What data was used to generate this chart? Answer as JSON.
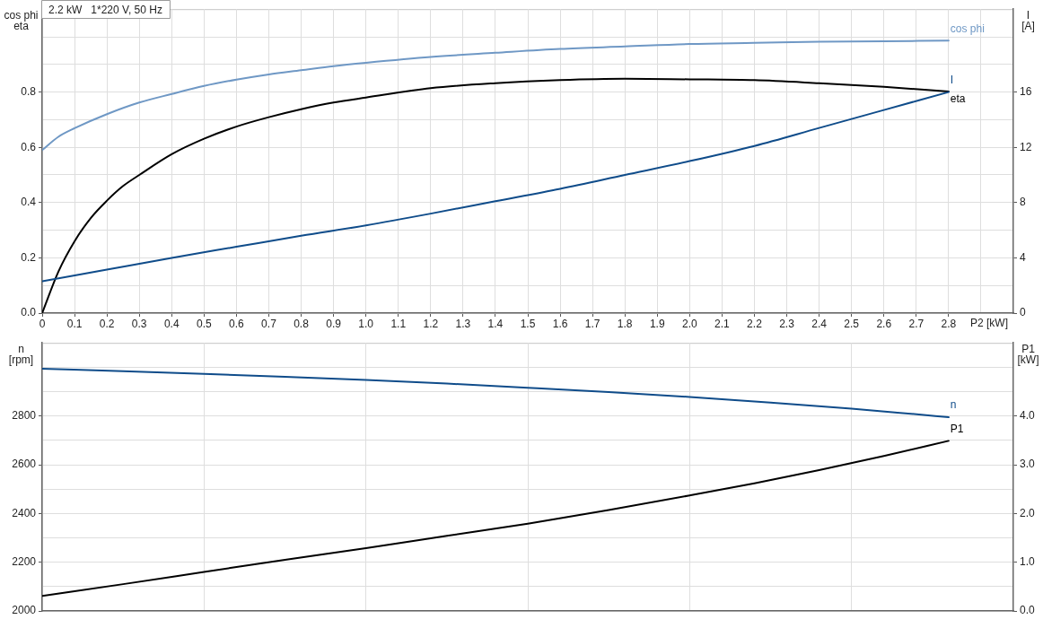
{
  "chart_data": [
    {
      "type": "line",
      "title": "2.2 kW   1*220 V, 50 Hz",
      "xlabel": "P2 [kW]",
      "ylabel": "cos phi\neta",
      "y2label": "I\n[A]",
      "xlim": [
        0,
        3.0
      ],
      "xticks": [
        0,
        0.1,
        0.2,
        0.3,
        0.4,
        0.5,
        0.6,
        0.7,
        0.8,
        0.9,
        {
          "value": 1,
          "label": "1.0"
        },
        1.1,
        1.2,
        1.3,
        1.4,
        1.5,
        1.6,
        1.7,
        1.8,
        1.9,
        {
          "value": 2,
          "label": "2.0"
        },
        2.1,
        2.2,
        2.3,
        2.4,
        2.5,
        2.6,
        2.7,
        2.8,
        {
          "value": 2.9,
          "label": null
        }
      ],
      "ylim": [
        0,
        1.1
      ],
      "yticks": [
        {
          "value": 0,
          "label": "0.0"
        },
        {
          "value": 0.1,
          "label": null
        },
        0.2,
        {
          "value": 0.3,
          "label": null
        },
        0.4,
        {
          "value": 0.5,
          "label": null
        },
        0.6,
        {
          "value": 0.7,
          "label": null
        },
        0.8,
        {
          "value": 0.9,
          "label": null
        },
        {
          "value": 1,
          "label": null
        }
      ],
      "y2lim": [
        0,
        22
      ],
      "y2ticks": [
        0,
        4,
        8,
        12,
        16
      ],
      "grid": true,
      "series": [
        {
          "name": "cos phi",
          "color": "#6f98c5",
          "x": [
            0,
            0.05,
            0.1,
            0.2,
            0.3,
            0.4,
            0.5,
            0.6,
            0.7,
            0.8,
            0.9,
            1.0,
            1.2,
            1.4,
            1.6,
            1.8,
            2.0,
            2.2,
            2.4,
            2.6,
            2.8
          ],
          "values": [
            0.59,
            0.638,
            0.669,
            0.72,
            0.762,
            0.793,
            0.822,
            0.845,
            0.864,
            0.879,
            0.894,
            0.906,
            0.927,
            0.942,
            0.956,
            0.965,
            0.974,
            0.978,
            0.982,
            0.984,
            0.986
          ]
        },
        {
          "name": "I",
          "color": "#0f4c8a",
          "axis": "y2",
          "x": [
            0,
            0.2,
            0.4,
            0.6,
            0.8,
            1.0,
            1.2,
            1.4,
            1.6,
            1.8,
            2.0,
            2.2,
            2.4,
            2.6,
            2.8
          ],
          "values": [
            2.3,
            3.15,
            4.0,
            4.8,
            5.6,
            6.35,
            7.2,
            8.1,
            9.0,
            10.0,
            11.0,
            12.1,
            13.4,
            14.7,
            16.0
          ]
        },
        {
          "name": "eta",
          "color": "#000000",
          "x": [
            0,
            0.05,
            0.1,
            0.15,
            0.2,
            0.25,
            0.3,
            0.4,
            0.5,
            0.6,
            0.7,
            0.8,
            0.9,
            1.0,
            1.2,
            1.4,
            1.6,
            1.8,
            2.0,
            2.2,
            2.4,
            2.6,
            2.8
          ],
          "values": [
            0,
            0.15,
            0.26,
            0.344,
            0.407,
            0.46,
            0.5,
            0.575,
            0.631,
            0.675,
            0.709,
            0.738,
            0.762,
            0.78,
            0.814,
            0.832,
            0.843,
            0.848,
            0.846,
            0.843,
            0.832,
            0.819,
            0.802
          ]
        }
      ]
    },
    {
      "type": "line",
      "ylabel": "n\n[rpm]",
      "y2label": "P1\n[kW]",
      "xlim": [
        0,
        3.0
      ],
      "xticks": [
        0,
        0.5,
        1,
        1.5,
        2,
        2.5
      ],
      "ylim": [
        2000,
        3100
      ],
      "yticks": [
        2000,
        {
          "value": 2100,
          "label": null
        },
        2200,
        {
          "value": 2300,
          "label": null
        },
        2400,
        {
          "value": 2500,
          "label": null
        },
        2600,
        {
          "value": 2700,
          "label": null
        },
        2800,
        {
          "value": 2900,
          "label": null
        },
        {
          "value": 3000,
          "label": null
        }
      ],
      "y2lim": [
        0,
        5.5
      ],
      "y2ticks": [
        {
          "value": 0,
          "label": "0.0"
        },
        {
          "value": 1,
          "label": "1.0"
        },
        {
          "value": 2,
          "label": "2.0"
        },
        {
          "value": 3,
          "label": "3.0"
        },
        {
          "value": 4,
          "label": "4.0"
        }
      ],
      "grid": true,
      "tick_labels": "y",
      "series": [
        {
          "name": "n",
          "color": "#0f4c8a",
          "x": [
            0,
            0.25,
            0.5,
            0.75,
            1.0,
            1.25,
            1.5,
            1.75,
            2.0,
            2.25,
            2.5,
            2.65,
            2.8
          ],
          "values": [
            2994,
            2984,
            2973,
            2961,
            2948,
            2933,
            2916,
            2898,
            2878,
            2855,
            2830,
            2813,
            2795
          ]
        },
        {
          "name": "P1",
          "color": "#000000",
          "axis": "y2",
          "x": [
            0,
            0.25,
            0.5,
            0.75,
            1.0,
            1.25,
            1.5,
            1.75,
            2.0,
            2.2,
            2.4,
            2.6,
            2.8
          ],
          "values": [
            0.31,
            0.55,
            0.8,
            1.05,
            1.29,
            1.54,
            1.79,
            2.07,
            2.37,
            2.62,
            2.89,
            3.18,
            3.49
          ]
        }
      ]
    }
  ]
}
